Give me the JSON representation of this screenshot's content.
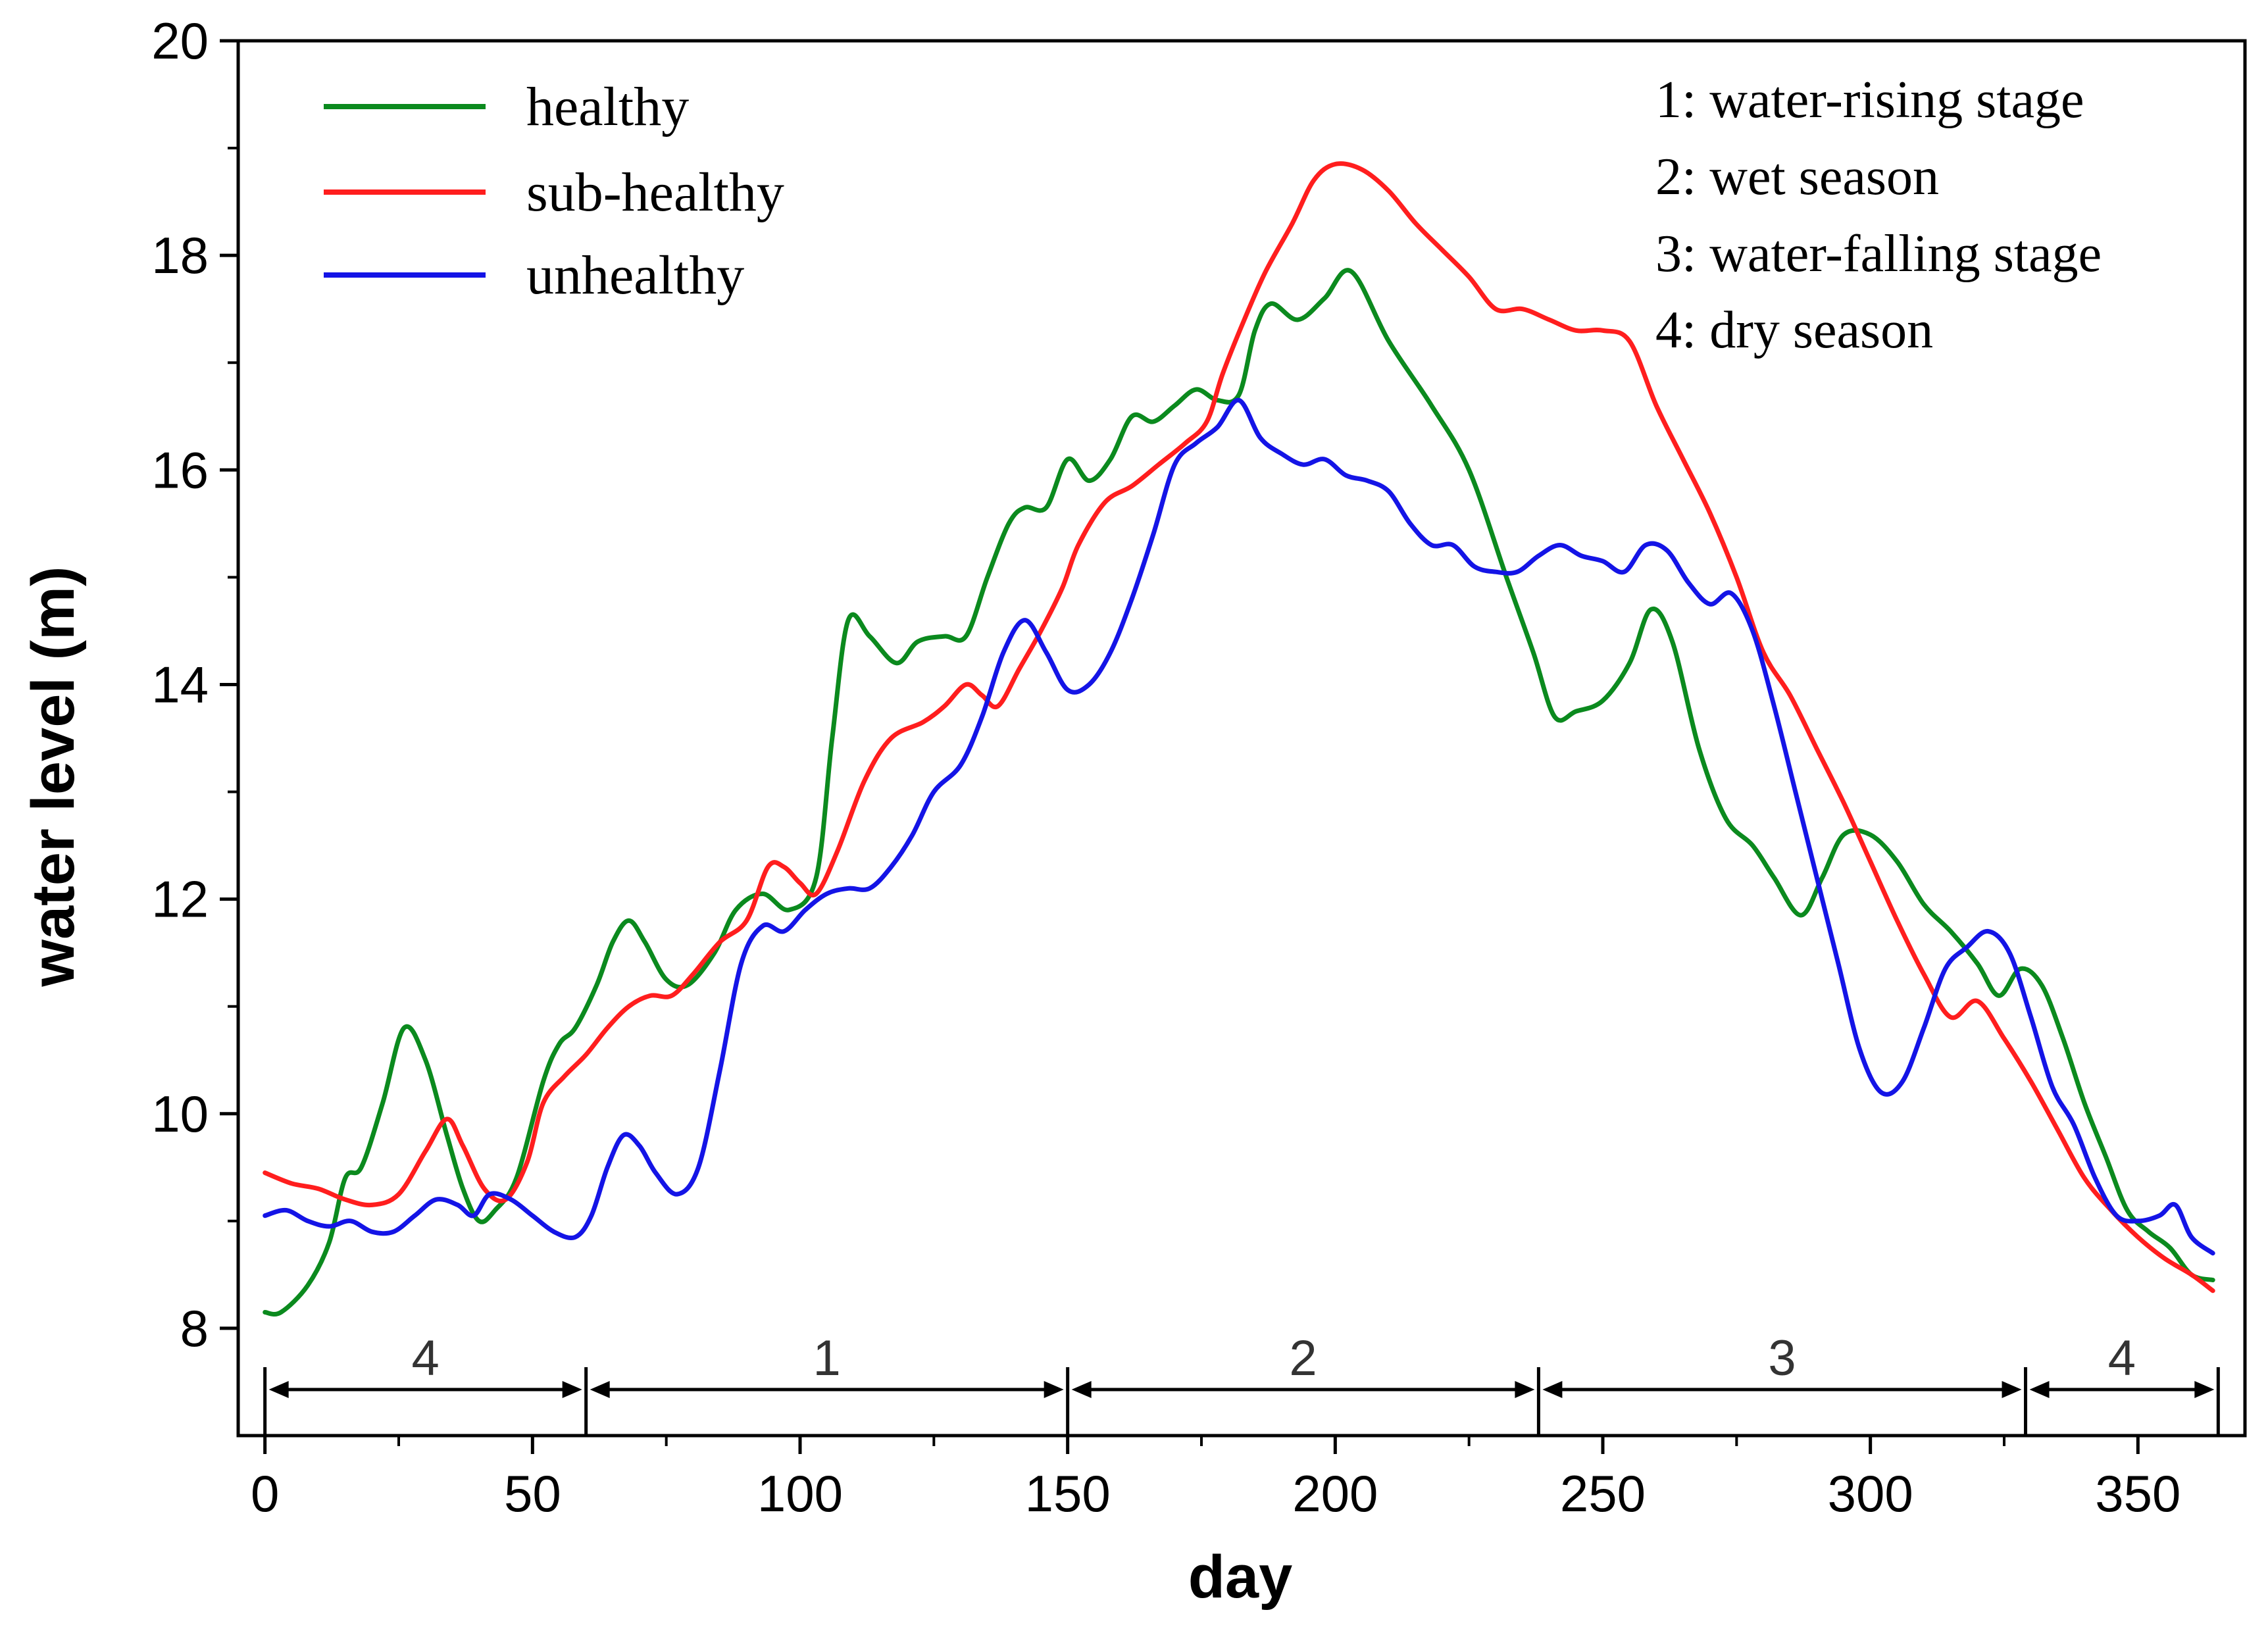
{
  "chart_data": {
    "type": "line",
    "title": "",
    "xlabel": "day",
    "ylabel": "water level (m)",
    "xlim": [
      -5,
      370
    ],
    "ylim": [
      7,
      20
    ],
    "xticks": [
      0,
      50,
      100,
      150,
      200,
      250,
      300,
      350
    ],
    "yticks": [
      8,
      10,
      12,
      14,
      16,
      18,
      20
    ],
    "colors": {
      "healthy": "#0b8a1e",
      "sub-healthy": "#ff1e1e",
      "unhealthy": "#1414e6"
    },
    "series": [
      {
        "name": "healthy",
        "color": "#0b8a1e",
        "points": [
          [
            0,
            8.15
          ],
          [
            3,
            8.15
          ],
          [
            8,
            8.4
          ],
          [
            12,
            8.8
          ],
          [
            15,
            9.4
          ],
          [
            18,
            9.5
          ],
          [
            22,
            10.1
          ],
          [
            26,
            10.8
          ],
          [
            30,
            10.5
          ],
          [
            34,
            9.8
          ],
          [
            37,
            9.3
          ],
          [
            40,
            9.0
          ],
          [
            43,
            9.1
          ],
          [
            47,
            9.4
          ],
          [
            52,
            10.3
          ],
          [
            55,
            10.65
          ],
          [
            58,
            10.8
          ],
          [
            62,
            11.2
          ],
          [
            65,
            11.6
          ],
          [
            68,
            11.8
          ],
          [
            71,
            11.6
          ],
          [
            75,
            11.25
          ],
          [
            79,
            11.2
          ],
          [
            84,
            11.5
          ],
          [
            88,
            11.9
          ],
          [
            93,
            12.05
          ],
          [
            98,
            11.9
          ],
          [
            103,
            12.2
          ],
          [
            106,
            13.5
          ],
          [
            109,
            14.6
          ],
          [
            113,
            14.45
          ],
          [
            118,
            14.2
          ],
          [
            122,
            14.4
          ],
          [
            127,
            14.45
          ],
          [
            131,
            14.45
          ],
          [
            135,
            15.0
          ],
          [
            139,
            15.5
          ],
          [
            142,
            15.65
          ],
          [
            146,
            15.65
          ],
          [
            150,
            16.1
          ],
          [
            154,
            15.9
          ],
          [
            158,
            16.1
          ],
          [
            162,
            16.5
          ],
          [
            166,
            16.45
          ],
          [
            170,
            16.6
          ],
          [
            174,
            16.75
          ],
          [
            178,
            16.65
          ],
          [
            182,
            16.7
          ],
          [
            185,
            17.3
          ],
          [
            188,
            17.55
          ],
          [
            193,
            17.4
          ],
          [
            198,
            17.6
          ],
          [
            203,
            17.85
          ],
          [
            210,
            17.2
          ],
          [
            218,
            16.6
          ],
          [
            225,
            16.0
          ],
          [
            232,
            15.0
          ],
          [
            237,
            14.3
          ],
          [
            241,
            13.7
          ],
          [
            245,
            13.75
          ],
          [
            250,
            13.85
          ],
          [
            255,
            14.2
          ],
          [
            259,
            14.7
          ],
          [
            263,
            14.4
          ],
          [
            268,
            13.4
          ],
          [
            273,
            12.75
          ],
          [
            278,
            12.5
          ],
          [
            282,
            12.2
          ],
          [
            287,
            11.85
          ],
          [
            291,
            12.2
          ],
          [
            295,
            12.6
          ],
          [
            300,
            12.6
          ],
          [
            305,
            12.35
          ],
          [
            310,
            11.95
          ],
          [
            315,
            11.7
          ],
          [
            320,
            11.4
          ],
          [
            324,
            11.1
          ],
          [
            328,
            11.35
          ],
          [
            332,
            11.2
          ],
          [
            336,
            10.7
          ],
          [
            340,
            10.1
          ],
          [
            344,
            9.6
          ],
          [
            348,
            9.1
          ],
          [
            352,
            8.9
          ],
          [
            356,
            8.75
          ],
          [
            360,
            8.5
          ],
          [
            364,
            8.45
          ]
        ]
      },
      {
        "name": "sub-healthy",
        "color": "#ff1e1e",
        "points": [
          [
            0,
            9.45
          ],
          [
            5,
            9.35
          ],
          [
            10,
            9.3
          ],
          [
            15,
            9.2
          ],
          [
            20,
            9.15
          ],
          [
            25,
            9.25
          ],
          [
            30,
            9.65
          ],
          [
            34,
            9.95
          ],
          [
            37,
            9.7
          ],
          [
            41,
            9.3
          ],
          [
            45,
            9.2
          ],
          [
            49,
            9.55
          ],
          [
            52,
            10.1
          ],
          [
            56,
            10.35
          ],
          [
            60,
            10.55
          ],
          [
            64,
            10.8
          ],
          [
            68,
            11.0
          ],
          [
            72,
            11.1
          ],
          [
            76,
            11.1
          ],
          [
            80,
            11.3
          ],
          [
            85,
            11.6
          ],
          [
            90,
            11.8
          ],
          [
            94,
            12.3
          ],
          [
            97,
            12.3
          ],
          [
            100,
            12.15
          ],
          [
            103,
            12.05
          ],
          [
            107,
            12.45
          ],
          [
            112,
            13.1
          ],
          [
            117,
            13.5
          ],
          [
            123,
            13.65
          ],
          [
            127,
            13.8
          ],
          [
            131,
            14.0
          ],
          [
            134,
            13.9
          ],
          [
            137,
            13.8
          ],
          [
            141,
            14.15
          ],
          [
            145,
            14.5
          ],
          [
            149,
            14.9
          ],
          [
            152,
            15.3
          ],
          [
            157,
            15.7
          ],
          [
            162,
            15.85
          ],
          [
            167,
            16.05
          ],
          [
            172,
            16.25
          ],
          [
            176,
            16.45
          ],
          [
            179,
            16.9
          ],
          [
            183,
            17.4
          ],
          [
            187,
            17.85
          ],
          [
            192,
            18.3
          ],
          [
            196,
            18.7
          ],
          [
            200,
            18.85
          ],
          [
            205,
            18.8
          ],
          [
            210,
            18.6
          ],
          [
            215,
            18.3
          ],
          [
            220,
            18.05
          ],
          [
            225,
            17.8
          ],
          [
            230,
            17.5
          ],
          [
            235,
            17.5
          ],
          [
            240,
            17.4
          ],
          [
            245,
            17.3
          ],
          [
            250,
            17.3
          ],
          [
            255,
            17.2
          ],
          [
            260,
            16.6
          ],
          [
            265,
            16.1
          ],
          [
            270,
            15.6
          ],
          [
            275,
            15.0
          ],
          [
            280,
            14.3
          ],
          [
            285,
            13.9
          ],
          [
            290,
            13.4
          ],
          [
            295,
            12.9
          ],
          [
            300,
            12.35
          ],
          [
            305,
            11.8
          ],
          [
            310,
            11.3
          ],
          [
            315,
            10.9
          ],
          [
            320,
            11.05
          ],
          [
            325,
            10.7
          ],
          [
            330,
            10.3
          ],
          [
            335,
            9.85
          ],
          [
            340,
            9.4
          ],
          [
            345,
            9.1
          ],
          [
            350,
            8.85
          ],
          [
            355,
            8.65
          ],
          [
            360,
            8.5
          ],
          [
            364,
            8.35
          ]
        ]
      },
      {
        "name": "unhealthy",
        "color": "#1414e6",
        "points": [
          [
            0,
            9.05
          ],
          [
            4,
            9.1
          ],
          [
            8,
            9.0
          ],
          [
            12,
            8.95
          ],
          [
            16,
            9.0
          ],
          [
            20,
            8.9
          ],
          [
            24,
            8.9
          ],
          [
            28,
            9.05
          ],
          [
            32,
            9.2
          ],
          [
            36,
            9.15
          ],
          [
            39,
            9.05
          ],
          [
            42,
            9.25
          ],
          [
            46,
            9.2
          ],
          [
            50,
            9.05
          ],
          [
            54,
            8.9
          ],
          [
            58,
            8.85
          ],
          [
            61,
            9.05
          ],
          [
            64,
            9.5
          ],
          [
            67,
            9.8
          ],
          [
            70,
            9.7
          ],
          [
            73,
            9.45
          ],
          [
            77,
            9.25
          ],
          [
            81,
            9.5
          ],
          [
            85,
            10.4
          ],
          [
            89,
            11.4
          ],
          [
            93,
            11.75
          ],
          [
            97,
            11.7
          ],
          [
            101,
            11.9
          ],
          [
            105,
            12.05
          ],
          [
            109,
            12.1
          ],
          [
            113,
            12.1
          ],
          [
            117,
            12.3
          ],
          [
            121,
            12.6
          ],
          [
            125,
            13.0
          ],
          [
            130,
            13.25
          ],
          [
            134,
            13.7
          ],
          [
            138,
            14.3
          ],
          [
            142,
            14.6
          ],
          [
            146,
            14.3
          ],
          [
            150,
            13.95
          ],
          [
            154,
            14.0
          ],
          [
            158,
            14.3
          ],
          [
            162,
            14.8
          ],
          [
            166,
            15.4
          ],
          [
            170,
            16.05
          ],
          [
            174,
            16.25
          ],
          [
            178,
            16.4
          ],
          [
            182,
            16.65
          ],
          [
            186,
            16.3
          ],
          [
            190,
            16.15
          ],
          [
            194,
            16.05
          ],
          [
            198,
            16.1
          ],
          [
            202,
            15.95
          ],
          [
            206,
            15.9
          ],
          [
            210,
            15.8
          ],
          [
            214,
            15.5
          ],
          [
            218,
            15.3
          ],
          [
            222,
            15.3
          ],
          [
            226,
            15.1
          ],
          [
            230,
            15.05
          ],
          [
            234,
            15.05
          ],
          [
            238,
            15.2
          ],
          [
            242,
            15.3
          ],
          [
            246,
            15.2
          ],
          [
            250,
            15.15
          ],
          [
            254,
            15.05
          ],
          [
            258,
            15.3
          ],
          [
            262,
            15.25
          ],
          [
            266,
            14.95
          ],
          [
            270,
            14.75
          ],
          [
            274,
            14.85
          ],
          [
            278,
            14.5
          ],
          [
            282,
            13.8
          ],
          [
            286,
            13.0
          ],
          [
            290,
            12.2
          ],
          [
            294,
            11.4
          ],
          [
            298,
            10.6
          ],
          [
            302,
            10.2
          ],
          [
            306,
            10.3
          ],
          [
            310,
            10.8
          ],
          [
            314,
            11.35
          ],
          [
            318,
            11.55
          ],
          [
            322,
            11.7
          ],
          [
            326,
            11.5
          ],
          [
            330,
            10.9
          ],
          [
            334,
            10.25
          ],
          [
            338,
            9.9
          ],
          [
            342,
            9.4
          ],
          [
            346,
            9.05
          ],
          [
            350,
            9.0
          ],
          [
            354,
            9.05
          ],
          [
            357,
            9.15
          ],
          [
            360,
            8.85
          ],
          [
            364,
            8.7
          ]
        ]
      }
    ],
    "legend": [
      "healthy",
      "sub-healthy",
      "unhealthy"
    ],
    "stage_key": [
      "1: water-rising stage",
      "2: wet season",
      "3: water-falling stage",
      "4: dry season"
    ],
    "seasons": [
      {
        "label": "4",
        "start": 0,
        "end": 60
      },
      {
        "label": "1",
        "start": 60,
        "end": 150
      },
      {
        "label": "2",
        "start": 150,
        "end": 238
      },
      {
        "label": "3",
        "start": 238,
        "end": 329
      },
      {
        "label": "4",
        "start": 329,
        "end": 365
      }
    ]
  }
}
